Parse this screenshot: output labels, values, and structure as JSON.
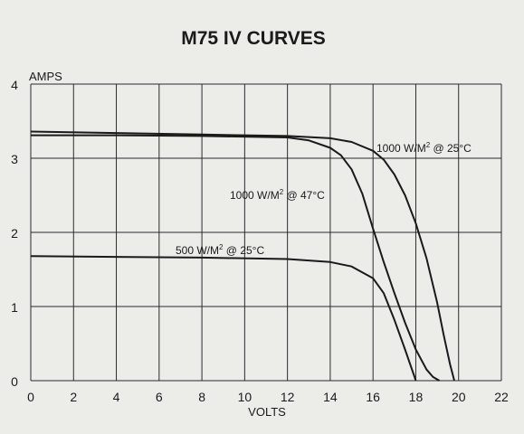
{
  "chart_data": {
    "type": "line",
    "title": "M75 IV CURVES",
    "xlabel": "VOLTS",
    "ylabel": "AMPS",
    "xlim": [
      0,
      22
    ],
    "ylim": [
      0,
      4
    ],
    "xticks": [
      "0",
      "2",
      "4",
      "6",
      "8",
      "10",
      "12",
      "14",
      "16",
      "18",
      "20",
      "22"
    ],
    "yticks": [
      "0",
      "1",
      "2",
      "3",
      "4"
    ],
    "grid": true,
    "series": [
      {
        "name": "1000 W/M² @ 25°C",
        "label_parts": [
          "1000 W/M",
          "2",
          " @ 25°C"
        ],
        "x": [
          0,
          4,
          8,
          12,
          14,
          15,
          16,
          16.5,
          17,
          17.5,
          18,
          18.5,
          19,
          19.3,
          19.6,
          19.8
        ],
        "y": [
          3.36,
          3.34,
          3.32,
          3.3,
          3.27,
          3.22,
          3.1,
          2.98,
          2.78,
          2.5,
          2.12,
          1.65,
          1.05,
          0.62,
          0.22,
          0.0
        ]
      },
      {
        "name": "1000 W/M² @ 47°C",
        "label_parts": [
          "1000 W/M",
          "2",
          " @ 47°C"
        ],
        "x": [
          0,
          4,
          8,
          12,
          13,
          14,
          14.5,
          15,
          15.5,
          16,
          16.5,
          17,
          17.5,
          18,
          18.5,
          18.8,
          19.1
        ],
        "y": [
          3.31,
          3.31,
          3.3,
          3.28,
          3.24,
          3.14,
          3.04,
          2.85,
          2.52,
          2.05,
          1.6,
          1.18,
          0.78,
          0.42,
          0.15,
          0.05,
          0.0
        ]
      },
      {
        "name": "500 W/M² @ 25°C",
        "label_parts": [
          "500 W/M",
          "2",
          " @ 25°C"
        ],
        "x": [
          0,
          4,
          8,
          12,
          14,
          15,
          16,
          16.5,
          17,
          17.5,
          18
        ],
        "y": [
          1.68,
          1.67,
          1.66,
          1.64,
          1.6,
          1.54,
          1.38,
          1.18,
          0.82,
          0.42,
          0.0
        ]
      }
    ]
  }
}
